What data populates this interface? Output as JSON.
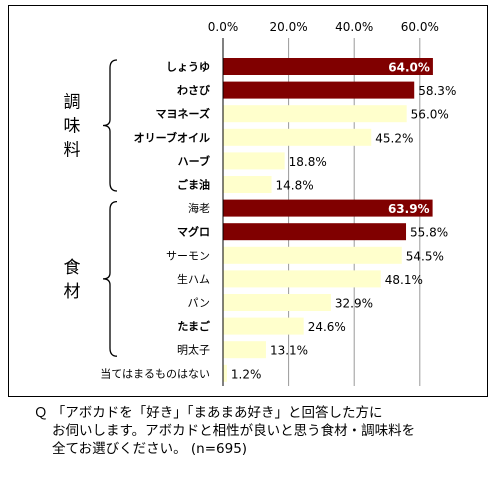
{
  "chart_data": {
    "type": "bar",
    "orientation": "horizontal",
    "ticks": [
      "0.0%",
      "20.0%",
      "40.0%",
      "60.0%"
    ],
    "xlim": [
      0,
      70
    ],
    "grid": true,
    "categories": [
      "しょうゆ",
      "わさび",
      "マヨネーズ",
      "オリーブオイル",
      "ハーブ",
      "ごま油",
      "海老",
      "マグロ",
      "サーモン",
      "生ハム",
      "パン",
      "たまご",
      "明太子",
      "当てはまるものはない"
    ],
    "values": [
      64.0,
      58.3,
      56.0,
      45.2,
      18.8,
      14.8,
      63.9,
      55.8,
      54.5,
      48.1,
      32.9,
      24.6,
      13.1,
      1.2
    ],
    "value_labels": [
      "64.0%",
      "58.3%",
      "56.0%",
      "45.2%",
      "18.8%",
      "14.8%",
      "63.9%",
      "55.8%",
      "54.5%",
      "48.1%",
      "32.9%",
      "24.6%",
      "13.1%",
      "1.2%"
    ],
    "highlight": [
      true,
      true,
      false,
      false,
      false,
      false,
      true,
      true,
      false,
      false,
      false,
      false,
      false,
      false
    ],
    "bold_labels": [
      true,
      true,
      true,
      true,
      true,
      true,
      false,
      true,
      false,
      false,
      false,
      true,
      false,
      false
    ],
    "groups": [
      {
        "label": [
          "調",
          "味",
          "料"
        ],
        "range": [
          0,
          5
        ]
      },
      {
        "label": [
          "食",
          "材"
        ],
        "range": [
          6,
          12
        ]
      }
    ],
    "colors": {
      "highlight": "#800000",
      "normal": "#ffffcc",
      "grid": "#999999"
    }
  },
  "question": {
    "line1": "Ｑ 「アボカドを「好き」「まあまあ好き」と回答した方に",
    "line2": "お伺いします。アボカドと相性が良いと思う食材・調味料を",
    "line3": "全てお選びください。 (n=695)"
  }
}
